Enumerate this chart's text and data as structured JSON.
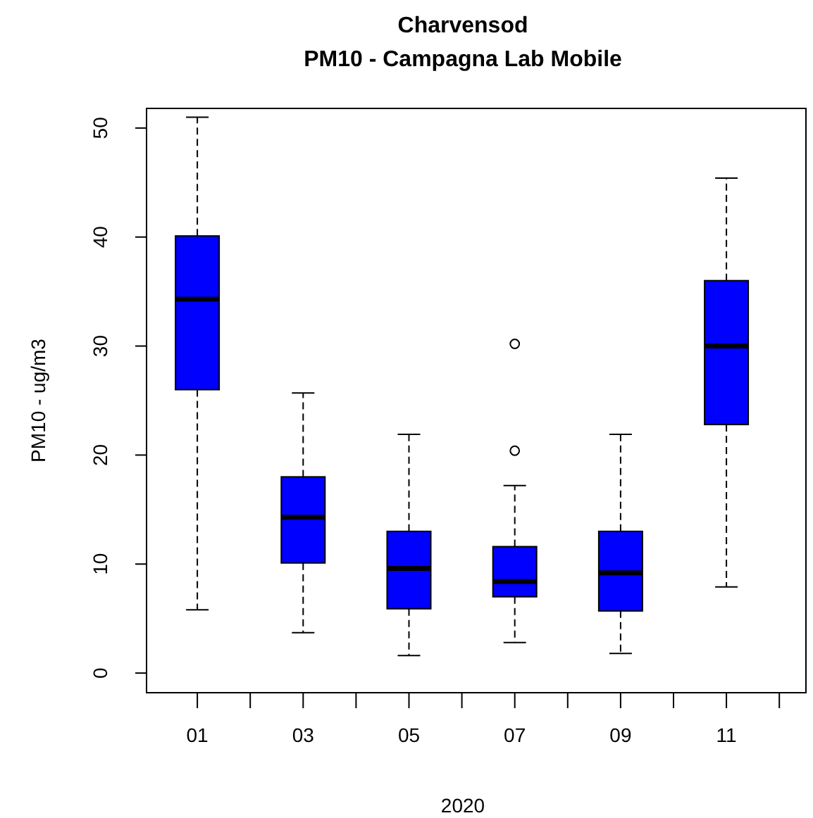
{
  "chart_data": {
    "type": "box",
    "title": "Charvensod\nPM10 - Campagna Lab Mobile",
    "xlabel": "2020",
    "ylabel": "PM10 - ug/m3",
    "color": "#0000ff",
    "categories": [
      "01",
      null,
      "03",
      null,
      "05",
      null,
      "07",
      null,
      "09",
      null,
      "11",
      null
    ],
    "ylim": [
      -1.8,
      51.8
    ],
    "yticks": [
      0,
      10,
      20,
      30,
      40,
      50
    ],
    "grid": false,
    "boxes": [
      {
        "low": 5.8,
        "q1": 26,
        "median": 34.3,
        "q3": 40.1,
        "high": 51
      },
      null,
      {
        "low": 3.7,
        "q1": 10.1,
        "median": 14.3,
        "q3": 18,
        "high": 25.7
      },
      null,
      {
        "low": 1.6,
        "q1": 5.9,
        "median": 9.6,
        "q3": 13,
        "high": 21.9
      },
      null,
      {
        "low": 2.8,
        "q1": 7,
        "median": 8.4,
        "q3": 11.6,
        "high": 17.2,
        "outliers": [
          20.4,
          30.2
        ]
      },
      null,
      {
        "low": 1.8,
        "q1": 5.7,
        "median": 9.2,
        "q3": 13,
        "high": 21.9
      },
      null,
      {
        "low": 7.9,
        "q1": 22.8,
        "median": 30,
        "q3": 36,
        "high": 45.4
      },
      null
    ]
  }
}
